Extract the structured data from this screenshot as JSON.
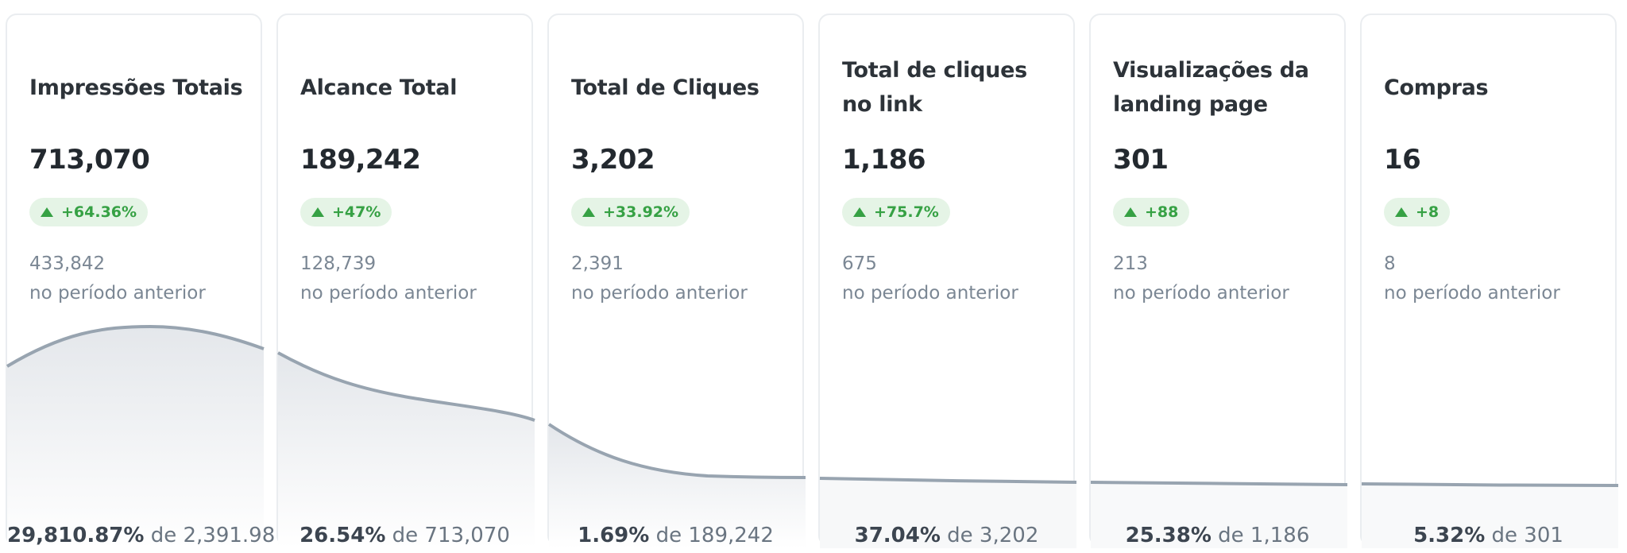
{
  "colors": {
    "card_border": "#eaedf0",
    "badge_bg": "#e5f4e6",
    "positive": "#36a144",
    "secondary_text": "#7b8794",
    "sparkline": "#98a4b0"
  },
  "cards": [
    {
      "title": "Impressões Totais",
      "value": "713,070",
      "delta": "+64.36%",
      "previous_value": "433,842",
      "previous_caption": "no período anterior",
      "conversion_pct": "29,810.87%",
      "conversion_of": "de 2,391.98"
    },
    {
      "title": "Alcance Total",
      "value": "189,242",
      "delta": "+47%",
      "previous_value": "128,739",
      "previous_caption": "no período anterior",
      "conversion_pct": "26.54%",
      "conversion_of": "de 713,070"
    },
    {
      "title": "Total de Cliques",
      "value": "3,202",
      "delta": "+33.92%",
      "previous_value": "2,391",
      "previous_caption": "no período anterior",
      "conversion_pct": "1.69%",
      "conversion_of": "de 189,242"
    },
    {
      "title": "Total de cliques no link",
      "value": "1,186",
      "delta": "+75.7%",
      "previous_value": "675",
      "previous_caption": "no período anterior",
      "conversion_pct": "37.04%",
      "conversion_of": "de 3,202"
    },
    {
      "title": "Visualizações da landing page",
      "value": "301",
      "delta": "+88",
      "previous_value": "213",
      "previous_caption": "no período anterior",
      "conversion_pct": "25.38%",
      "conversion_of": "de 1,186"
    },
    {
      "title": "Compras",
      "value": "16",
      "delta": "+8",
      "previous_value": "8",
      "previous_caption": "no período anterior",
      "conversion_pct": "5.32%",
      "conversion_of": "de 301"
    }
  ]
}
